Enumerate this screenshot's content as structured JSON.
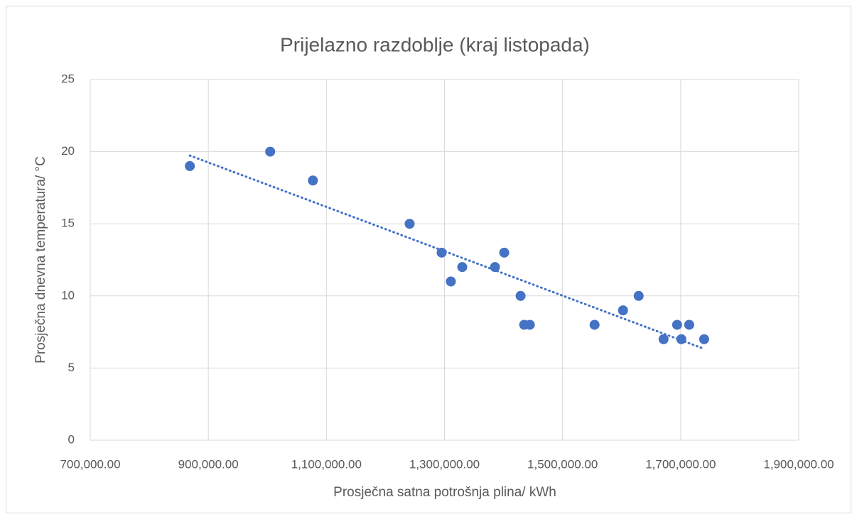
{
  "chart_data": {
    "type": "scatter",
    "title": "Prijelazno razdoblje (kraj listopada)",
    "x_label": "Prosječna satna potrošnja plina/ kWh",
    "y_label": "Prosječna dnevna temperatura/ °C",
    "color": "#4472c4",
    "trendline": true,
    "grid": true,
    "x": [
      868700,
      1004800,
      1077100,
      1241000,
      1295200,
      1310800,
      1330100,
      1385500,
      1401200,
      1428900,
      1435000,
      1444600,
      1554200,
      1602400,
      1628900,
      1671100,
      1694000,
      1701200,
      1714500,
      1739800
    ],
    "values": [
      19,
      20,
      18,
      15,
      13,
      11,
      12,
      12,
      13,
      10,
      8,
      8,
      8,
      9,
      10,
      7,
      8,
      7,
      8,
      7
    ],
    "xlim": [
      700000,
      1900000
    ],
    "xticks": [
      {
        "value": 700000,
        "label": "700,000.00"
      },
      {
        "value": 900000,
        "label": "900,000.00"
      },
      {
        "value": 1100000,
        "label": "1,100,000.00"
      },
      {
        "value": 1300000,
        "label": "1,300,000.00"
      },
      {
        "value": 1500000,
        "label": "1,500,000.00"
      },
      {
        "value": 1700000,
        "label": "1,700,000.00"
      },
      {
        "value": 1900000,
        "label": "1,900,000.00"
      }
    ],
    "ylim": [
      0,
      25
    ],
    "yticks": [
      0,
      5,
      10,
      15,
      20,
      25
    ]
  }
}
